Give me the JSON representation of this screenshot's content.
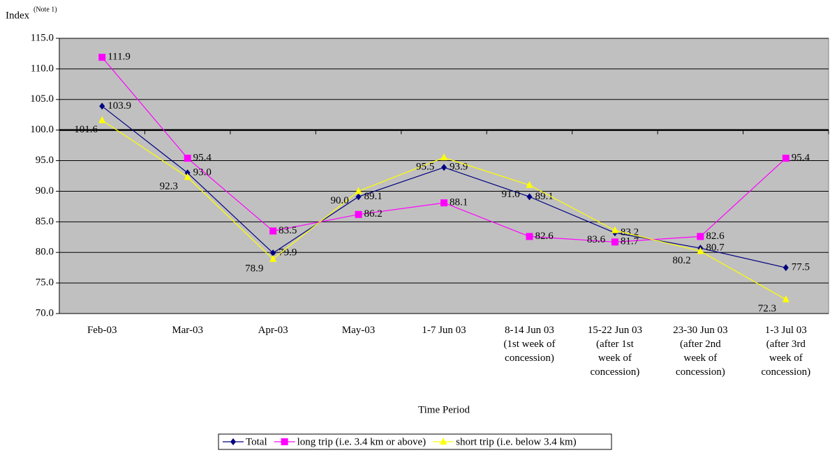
{
  "chart_data": {
    "type": "line",
    "y_label": "Index",
    "y_label_note": "(Note 1)",
    "x_label": "Time Period",
    "categories": [
      "Feb-03",
      "Mar-03",
      "Apr-03",
      "May-03",
      "1-7 Jun 03",
      "8-14 Jun 03\n(1st week of\nconcession)",
      "15-22 Jun 03\n(after 1st\nweek of\nconcession)",
      "23-30 Jun 03\n(after 2nd\nweek of\nconcession)",
      "1-3 Jul 03\n(after 3rd\nweek of\nconcession)"
    ],
    "series": [
      {
        "name": "Total",
        "color": "#000080",
        "marker": "diamond",
        "values": [
          103.9,
          93.0,
          79.9,
          89.1,
          93.9,
          89.1,
          83.2,
          80.7,
          77.5
        ],
        "value_labels": [
          "103.9",
          "93.0",
          "79.9",
          "89.1",
          "93.9",
          "89.1",
          "83.2",
          "80.7",
          "77.5"
        ]
      },
      {
        "name": "long trip (i.e. 3.4 km or above)",
        "color": "#ff00ff",
        "marker": "square",
        "values": [
          111.9,
          95.4,
          83.5,
          86.2,
          88.1,
          82.6,
          81.7,
          82.6,
          95.4
        ],
        "value_labels": [
          "111.9",
          "95.4",
          "83.5",
          "86.2",
          "88.1",
          "82.6",
          "81.7",
          "82.6",
          "95.4"
        ]
      },
      {
        "name": "short trip (i.e. below 3.4 km)",
        "color": "#ffff00",
        "marker": "triangle",
        "values": [
          101.6,
          92.3,
          78.9,
          90.0,
          95.5,
          91.0,
          83.6,
          80.2,
          72.3
        ],
        "value_labels": [
          "101.6",
          "92.3",
          "78.9",
          "90.0",
          "95.5",
          "91.0",
          "83.6",
          "80.2",
          "72.3"
        ]
      }
    ],
    "ylim": [
      70,
      115
    ],
    "yticks": [
      {
        "value": 70,
        "label": "70.0"
      },
      {
        "value": 75,
        "label": "75.0"
      },
      {
        "value": 80,
        "label": "80.0"
      },
      {
        "value": 85,
        "label": "85.0"
      },
      {
        "value": 90,
        "label": "90.0"
      },
      {
        "value": 95,
        "label": "95.0"
      },
      {
        "value": 100,
        "label": "100.0"
      },
      {
        "value": 105,
        "label": "105.0"
      },
      {
        "value": 110,
        "label": "110.0"
      },
      {
        "value": 115,
        "label": "115.0"
      }
    ],
    "x_axis_crosses_at": 100,
    "grid": true,
    "plot_background": "#c0c0c0",
    "legend": "bottom"
  }
}
